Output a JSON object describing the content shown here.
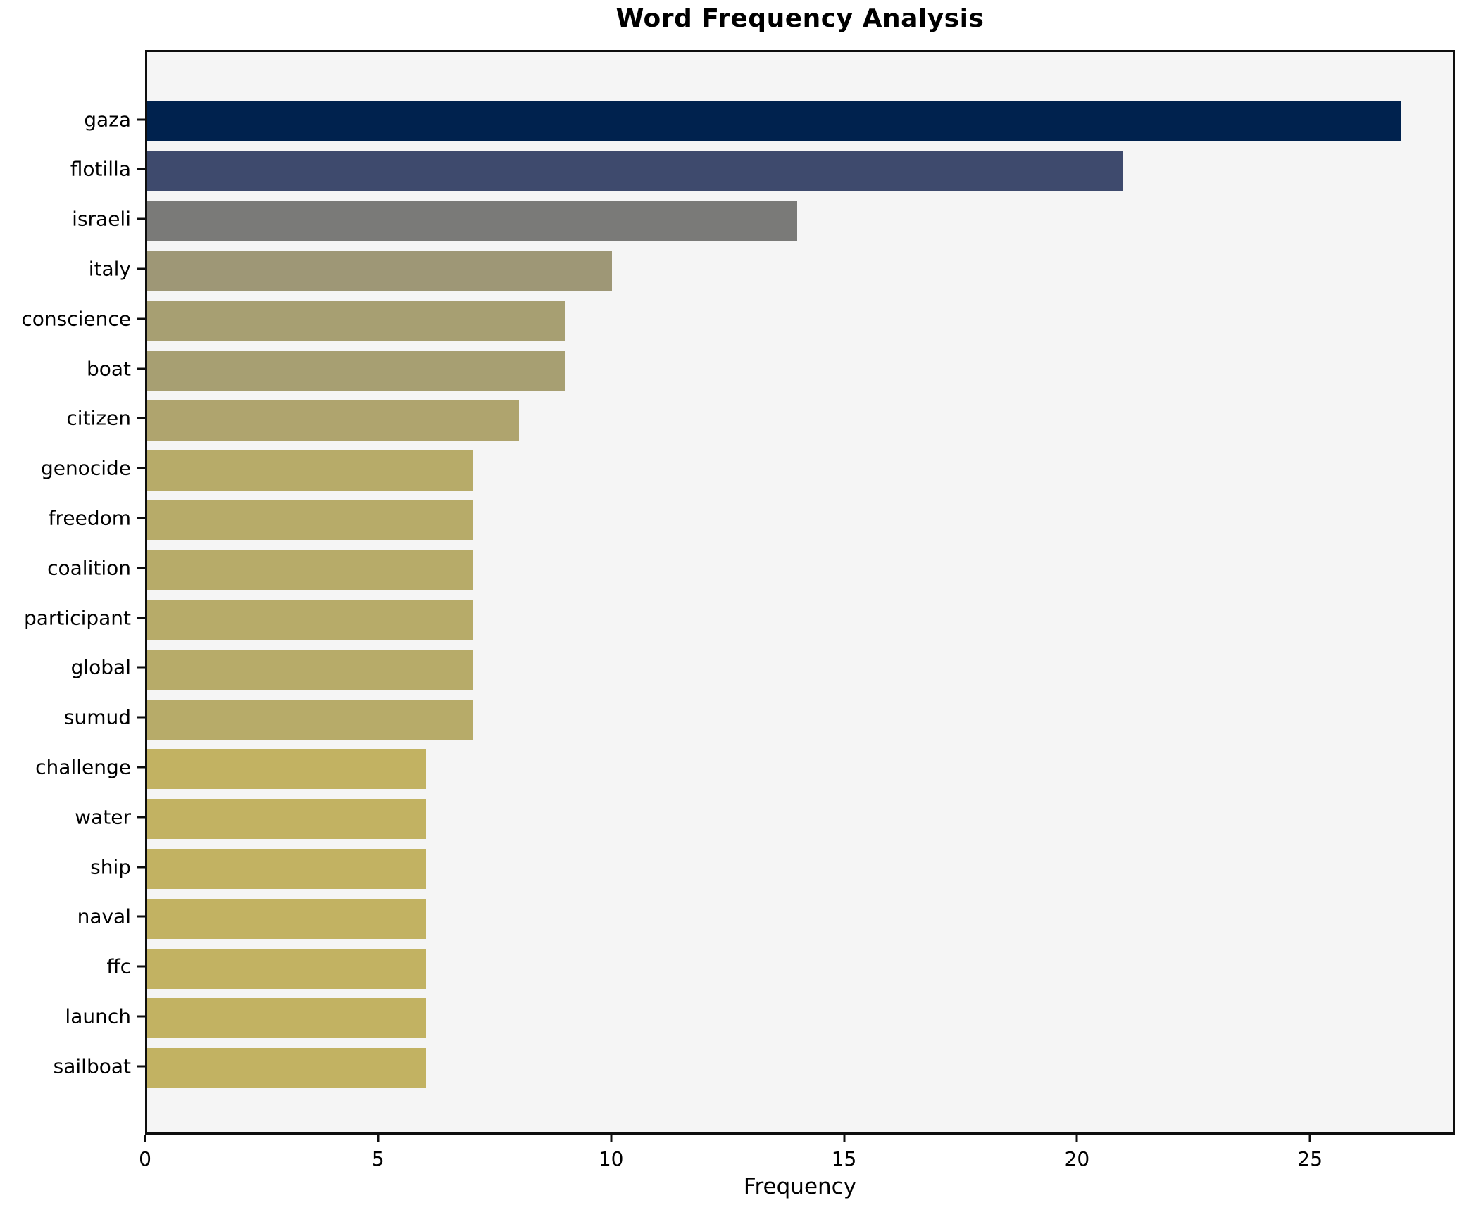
{
  "chart_data": {
    "type": "bar",
    "orientation": "horizontal",
    "title": "Word Frequency Analysis",
    "xlabel": "Frequency",
    "ylabel": "",
    "categories": [
      "gaza",
      "flotilla",
      "israeli",
      "italy",
      "conscience",
      "boat",
      "citizen",
      "genocide",
      "freedom",
      "coalition",
      "participant",
      "global",
      "sumud",
      "challenge",
      "water",
      "ship",
      "naval",
      "ffc",
      "launch",
      "sailboat"
    ],
    "values": [
      27,
      21,
      14,
      10,
      9,
      9,
      8,
      7,
      7,
      7,
      7,
      7,
      7,
      6,
      6,
      6,
      6,
      6,
      6,
      6
    ],
    "bar_colors": [
      "#00224e",
      "#3e4a6d",
      "#7a7a78",
      "#9e9776",
      "#a79f72",
      "#a79f72",
      "#afa46e",
      "#b7ab69",
      "#b7ab69",
      "#b7ab69",
      "#b7ab69",
      "#b7ab69",
      "#b7ab69",
      "#c2b262",
      "#c2b262",
      "#c2b262",
      "#c2b262",
      "#c2b262",
      "#c2b262",
      "#c2b262"
    ],
    "xlim": [
      0,
      28.11
    ],
    "xticks": [
      0,
      5,
      10,
      15,
      20,
      25
    ],
    "grid": false,
    "legend": false,
    "plot_background": "#f5f5f5",
    "figure_background": "#ffffff",
    "spine_color": "#0e0e0e",
    "text_color": "#000000"
  }
}
